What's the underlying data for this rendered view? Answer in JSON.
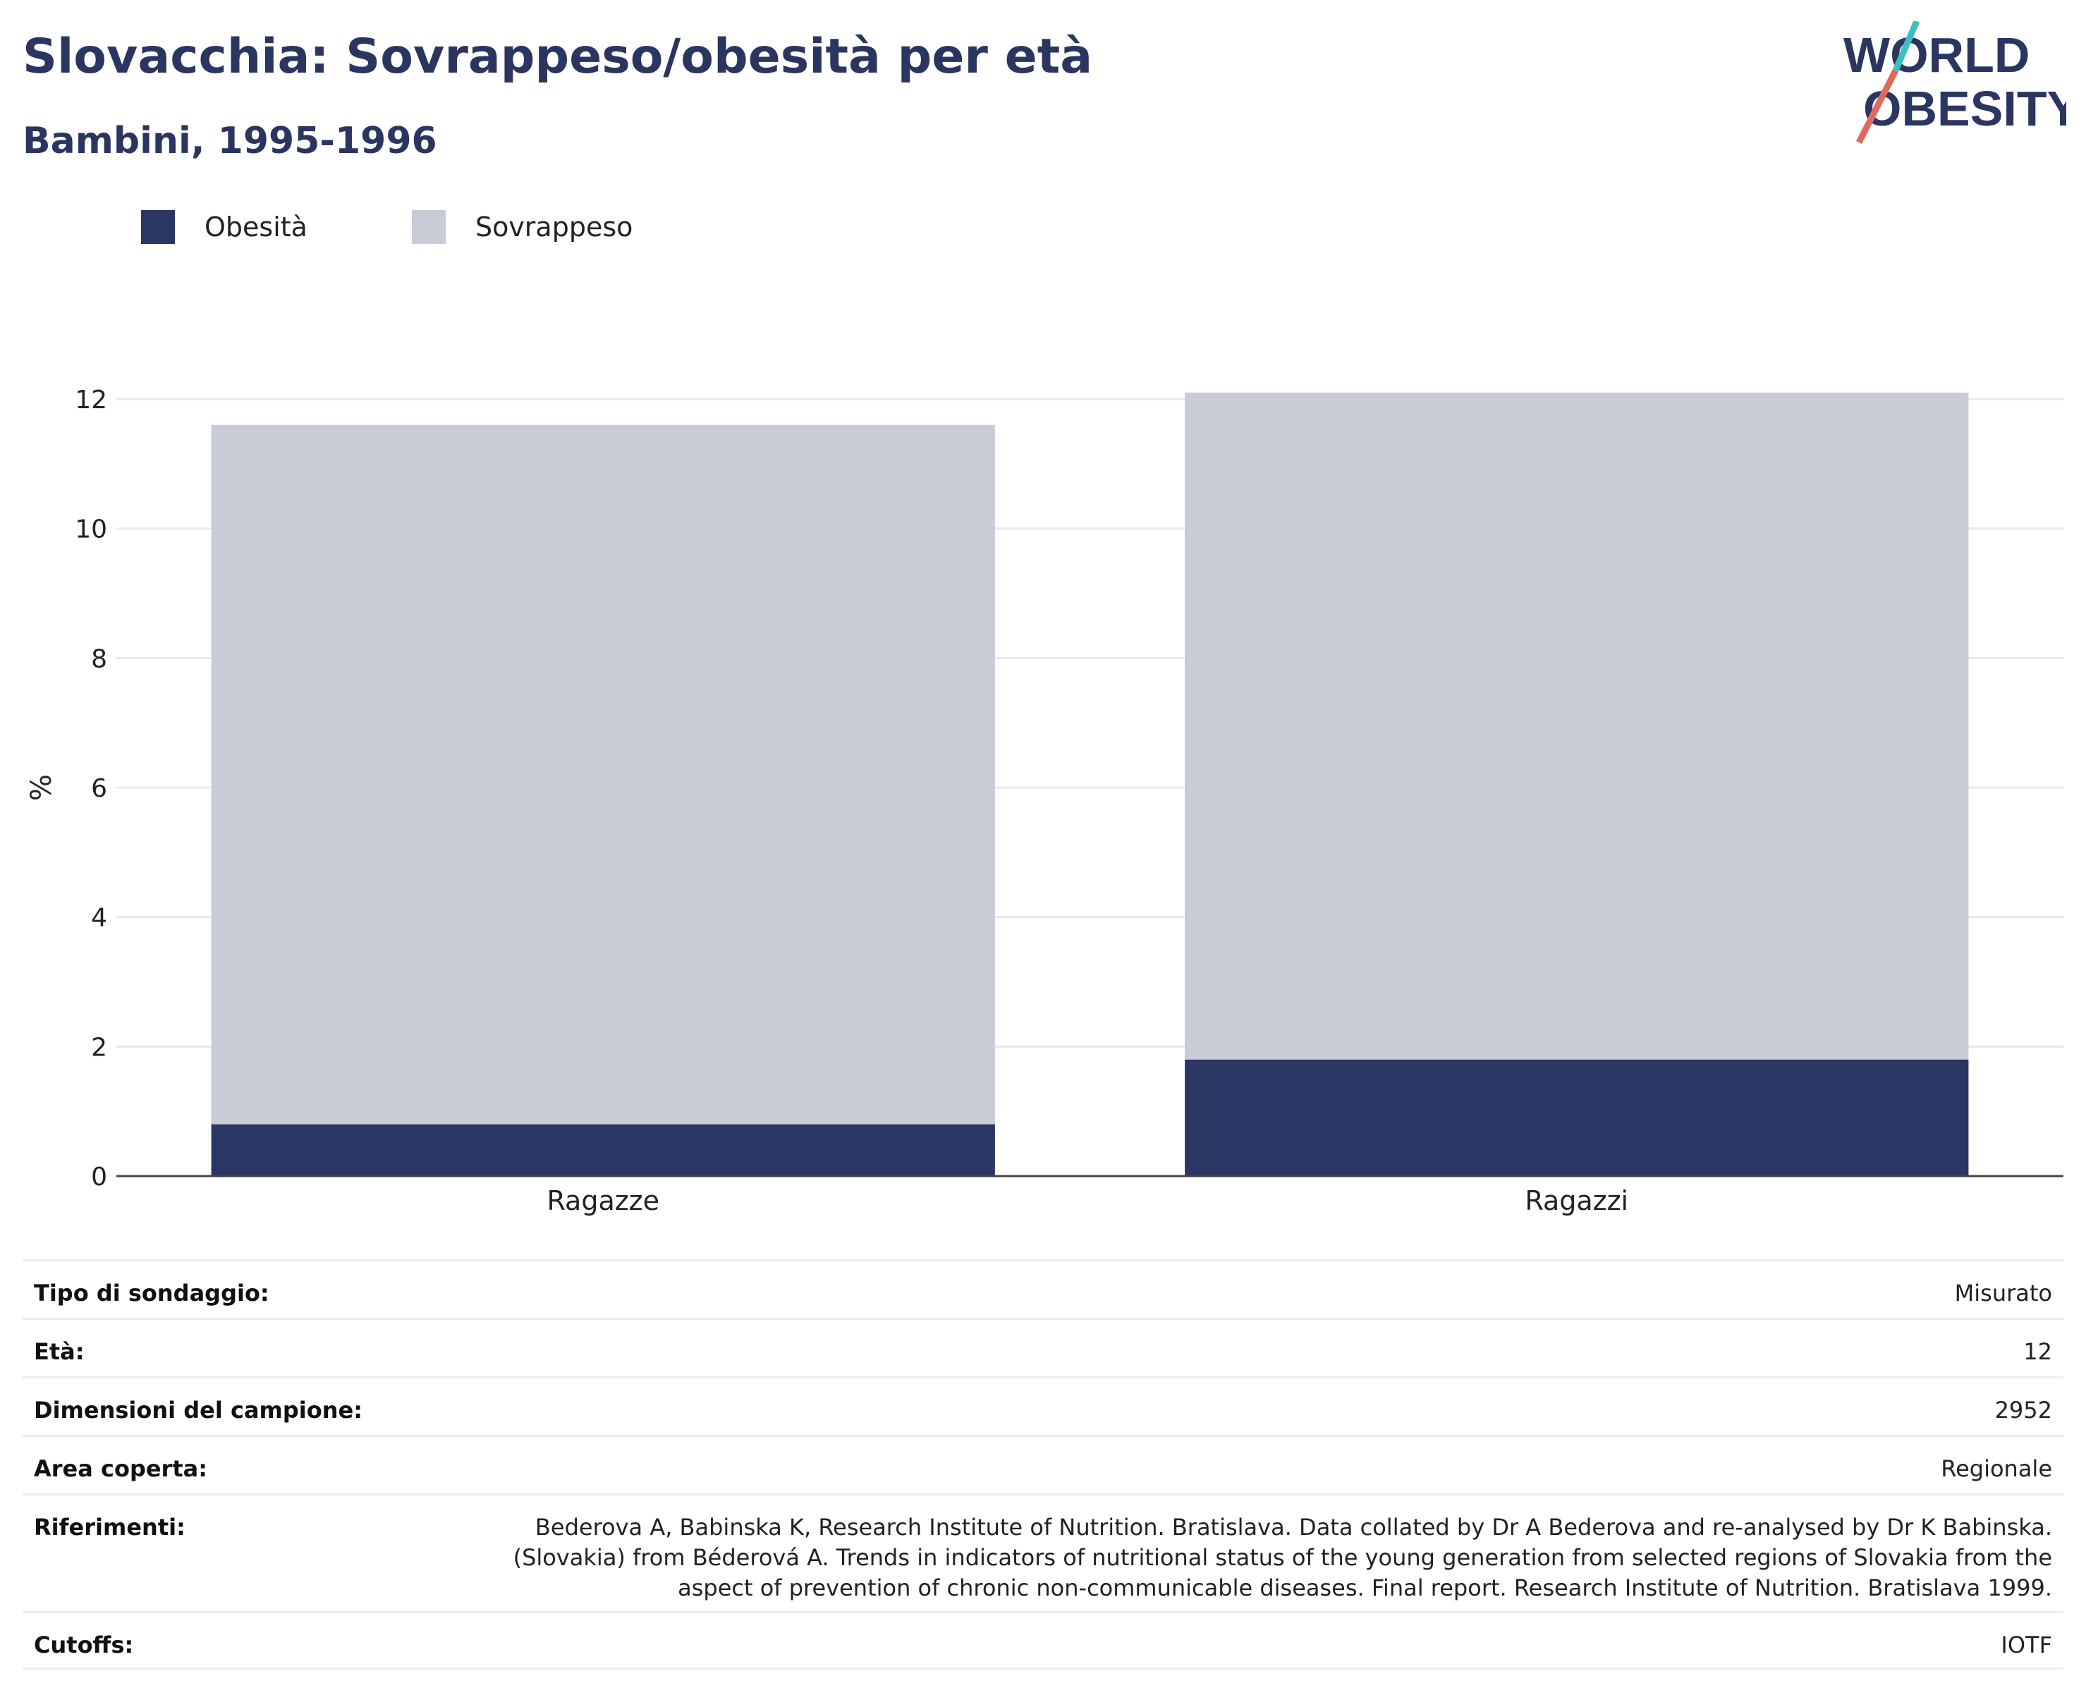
{
  "header": {
    "title": "Slovacchia: Sovrappeso/obesità per età",
    "subtitle": "Bambini, 1995-1996",
    "logo_line1": "WORLD",
    "logo_line2": "OBESITY"
  },
  "colors": {
    "title": "#2a3560",
    "obesity": "#2a3663",
    "overweight": "#c9cbd7",
    "logo_teal": "#3bbfbf",
    "logo_red": "#e0695e"
  },
  "legend": [
    {
      "label": "Obesità",
      "color": "#2a3663"
    },
    {
      "label": "Sovrappeso",
      "color": "#c9cbd7"
    }
  ],
  "chart_data": {
    "type": "bar",
    "stacked": true,
    "categories": [
      "Ragazze",
      "Ragazzi"
    ],
    "series": [
      {
        "name": "Obesità",
        "values": [
          0.8,
          1.8
        ]
      },
      {
        "name": "Sovrappeso",
        "values": [
          10.8,
          10.3
        ]
      }
    ],
    "title": "Slovacchia: Sovrappeso/obesità per età",
    "subtitle": "Bambini, 1995-1996",
    "xlabel": "",
    "ylabel": "%",
    "ylim": [
      0,
      12
    ],
    "yticks": [
      0,
      2,
      4,
      6,
      8,
      10,
      12
    ],
    "grid": true,
    "legend_position": "top-left"
  },
  "info": [
    {
      "key": "Tipo di sondaggio:",
      "value": "Misurato"
    },
    {
      "key": "Età:",
      "value": "12"
    },
    {
      "key": "Dimensioni del campione:",
      "value": "2952"
    },
    {
      "key": "Area coperta:",
      "value": "Regionale"
    },
    {
      "key": "Riferimenti:",
      "value_lines": [
        "Bederova A, Babinska K, Research Institute of Nutrition. Bratislava. Data collated by Dr A Bederova and re-analysed by Dr K Babinska.",
        "(Slovakia) from Béderová A. Trends in indicators of nutritional status of the young generation from selected regions of Slovakia from the",
        "aspect of prevention of chronic non-communicable diseases. Final report. Research Institute of Nutrition. Bratislava 1999."
      ]
    },
    {
      "key": "Cutoffs:",
      "value": "IOTF"
    }
  ]
}
